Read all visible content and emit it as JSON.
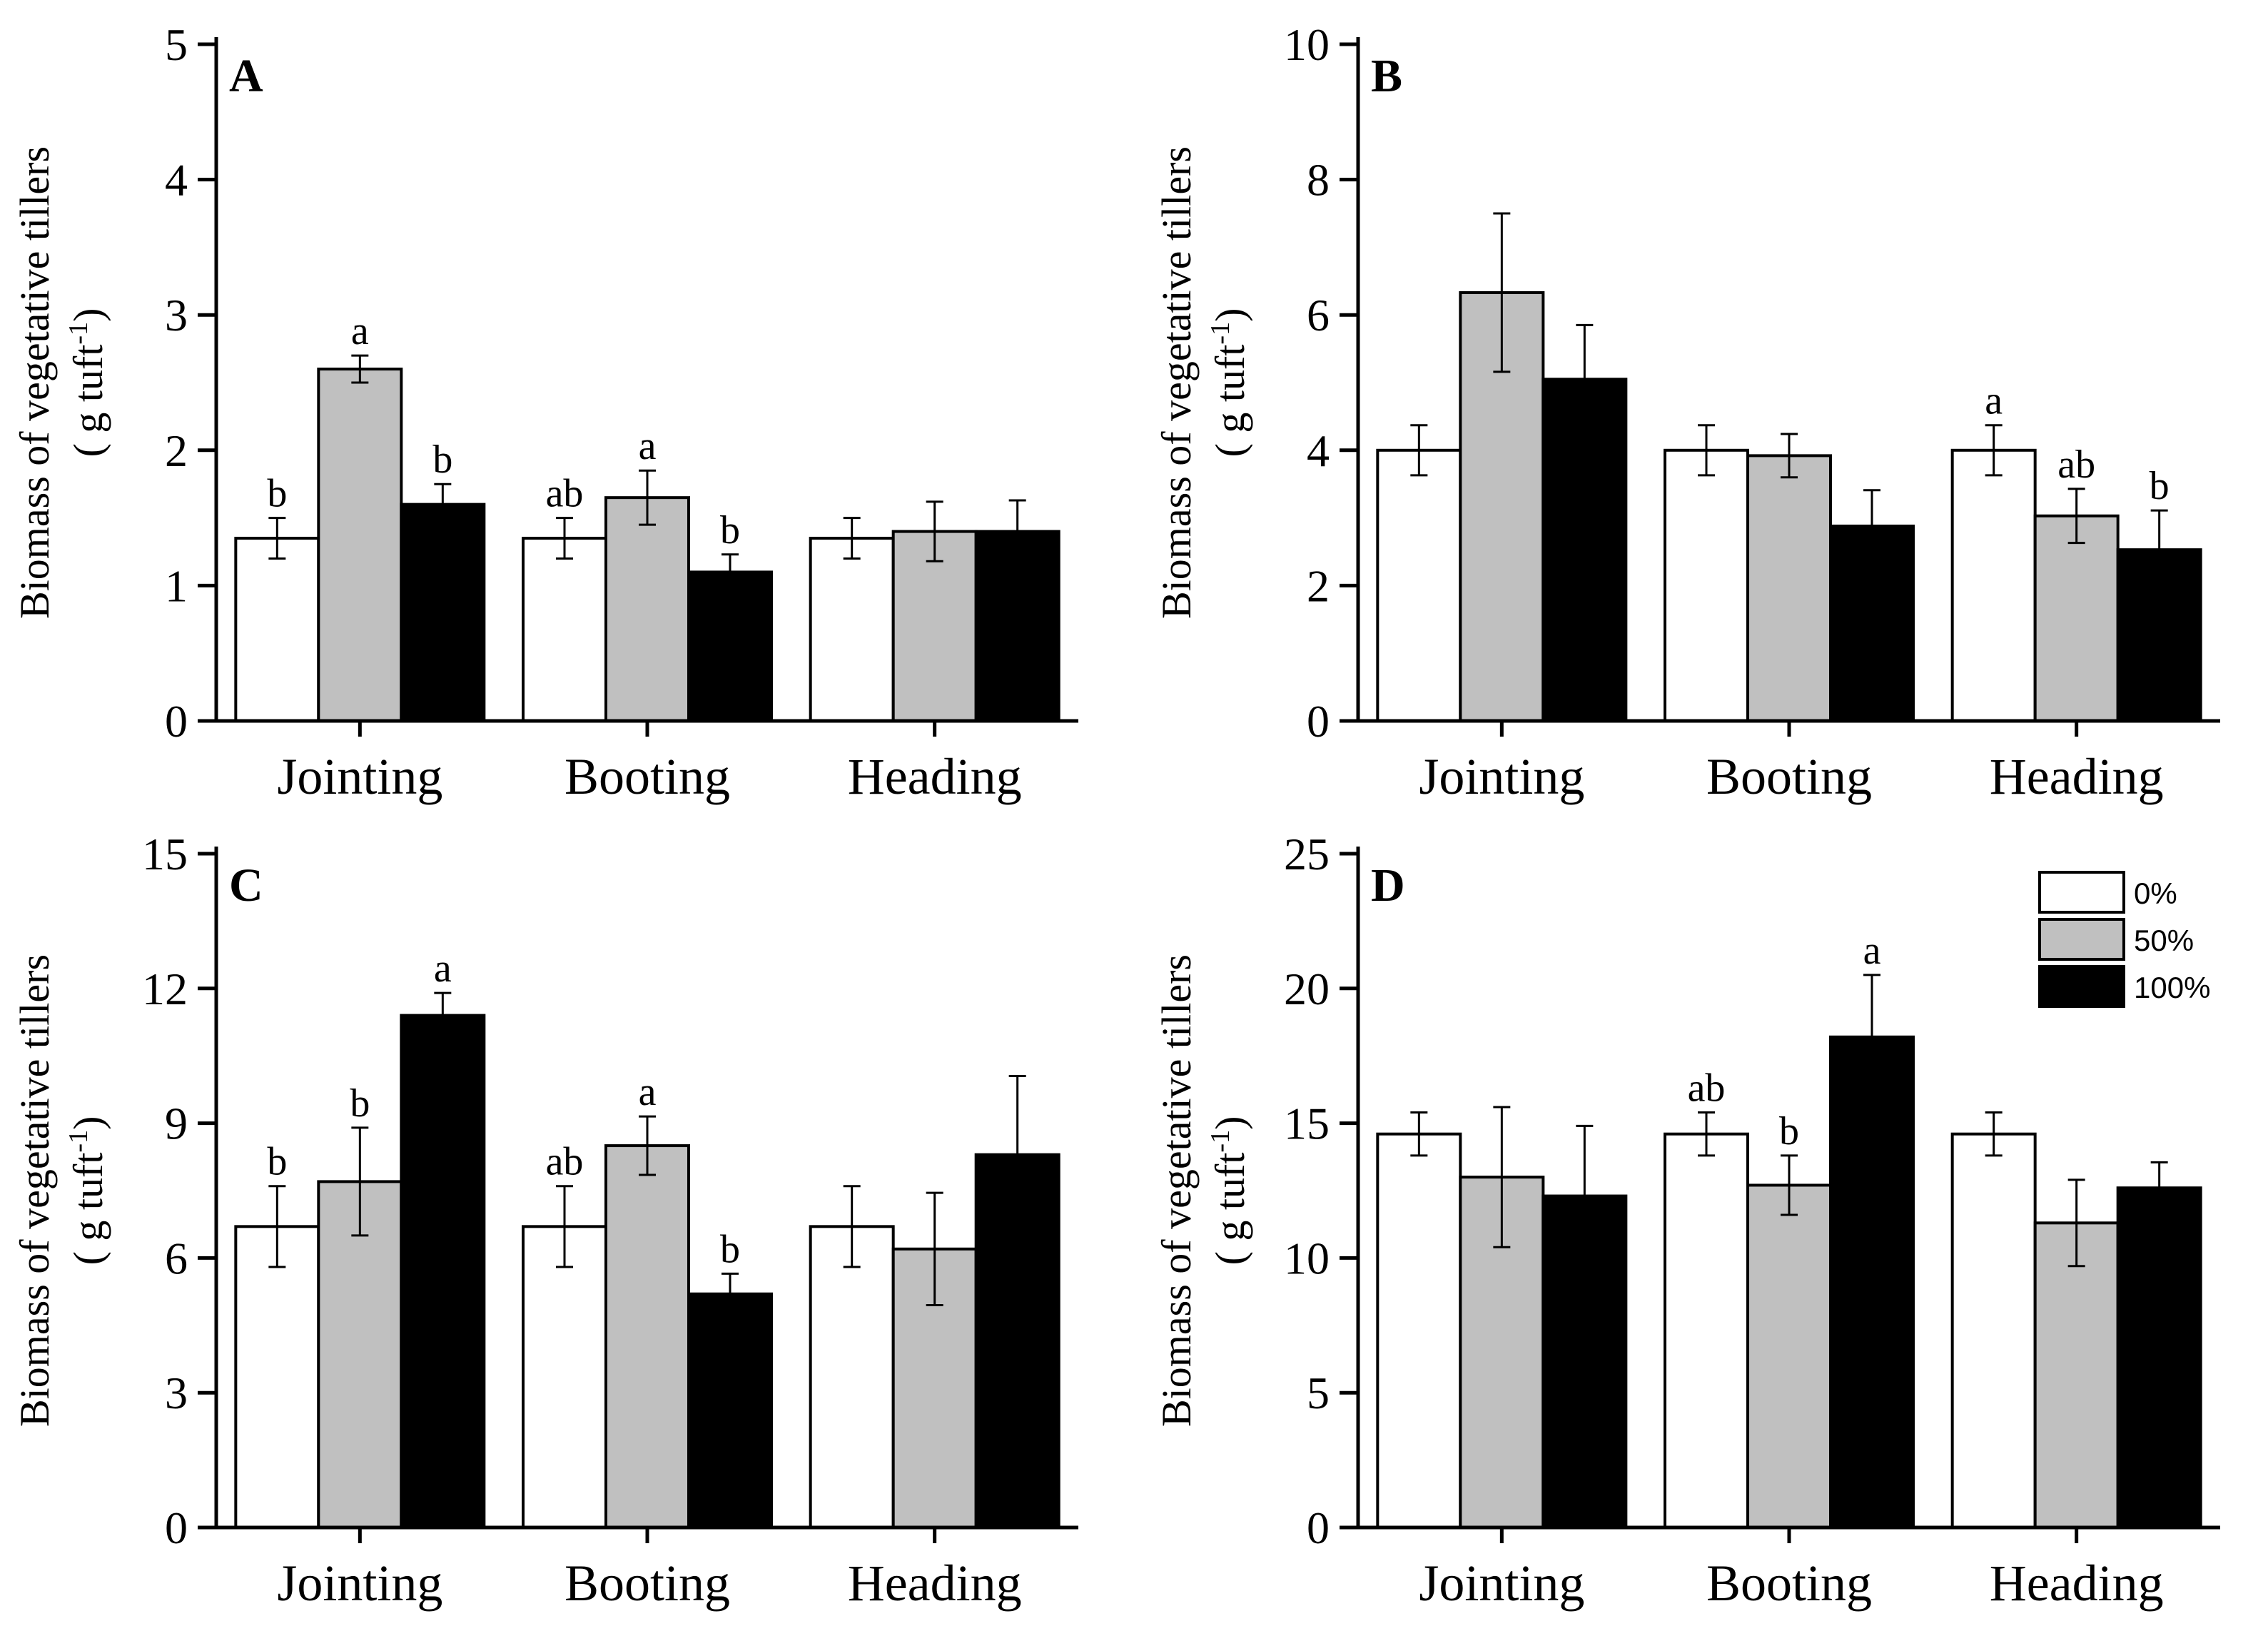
{
  "colors": {
    "0%": "#ffffff",
    "50%": "#c0c0c0",
    "100%": "#000000"
  },
  "legend": [
    "0%",
    "50%",
    "100%"
  ],
  "chart_data": [
    {
      "panel": "A",
      "type": "bar",
      "ylabel_line1": "Biomass of vegetative tillers",
      "ylabel_line2": "( g tuft",
      "ylabel_sup": "-1",
      "ylabel_close": ")",
      "ylim": [
        0,
        5
      ],
      "yticks": [
        0,
        1,
        2,
        3,
        4,
        5
      ],
      "categories": [
        "Jointing",
        "Booting",
        "Heading"
      ],
      "series": [
        {
          "name": "0%",
          "values": [
            1.35,
            1.35,
            1.35
          ],
          "errors": [
            0.15,
            0.15,
            0.15
          ],
          "sig": [
            "b",
            "ab",
            ""
          ]
        },
        {
          "name": "50%",
          "values": [
            2.6,
            1.65,
            1.4
          ],
          "errors": [
            0.1,
            0.2,
            0.22
          ],
          "sig": [
            "a",
            "a",
            ""
          ]
        },
        {
          "name": "100%",
          "values": [
            1.6,
            1.1,
            1.4
          ],
          "errors": [
            0.15,
            0.13,
            0.23
          ],
          "sig": [
            "b",
            "b",
            ""
          ]
        }
      ]
    },
    {
      "panel": "B",
      "type": "bar",
      "ylabel_line1": "Biomass of vegetative tillers",
      "ylabel_line2": "( g tuft",
      "ylabel_sup": "-1",
      "ylabel_close": ")",
      "ylim": [
        0,
        10
      ],
      "yticks": [
        0,
        2,
        4,
        6,
        8,
        10
      ],
      "categories": [
        "Jointing",
        "Booting",
        "Heading"
      ],
      "series": [
        {
          "name": "0%",
          "values": [
            4.0,
            4.0,
            4.0
          ],
          "errors": [
            0.37,
            0.37,
            0.37
          ],
          "sig": [
            "",
            "",
            "a"
          ]
        },
        {
          "name": "50%",
          "values": [
            6.33,
            3.92,
            3.03
          ],
          "errors": [
            1.17,
            0.32,
            0.4
          ],
          "sig": [
            "",
            "",
            "ab"
          ]
        },
        {
          "name": "100%",
          "values": [
            5.05,
            2.88,
            2.53
          ],
          "errors": [
            0.8,
            0.53,
            0.58
          ],
          "sig": [
            "",
            "",
            "b"
          ]
        }
      ]
    },
    {
      "panel": "C",
      "type": "bar",
      "ylabel_line1": "Biomass of vegetative tillers",
      "ylabel_line2": "( g tuft",
      "ylabel_sup": "-1",
      "ylabel_close": ")",
      "ylim": [
        0,
        15
      ],
      "yticks": [
        0,
        3,
        6,
        9,
        12,
        15
      ],
      "categories": [
        "Jointing",
        "Booting",
        "Heading"
      ],
      "series": [
        {
          "name": "0%",
          "values": [
            6.7,
            6.7,
            6.7
          ],
          "errors": [
            0.9,
            0.9,
            0.9
          ],
          "sig": [
            "b",
            "ab",
            ""
          ]
        },
        {
          "name": "50%",
          "values": [
            7.7,
            8.5,
            6.2
          ],
          "errors": [
            1.2,
            0.65,
            1.25
          ],
          "sig": [
            "b",
            "a",
            ""
          ]
        },
        {
          "name": "100%",
          "values": [
            11.4,
            5.2,
            8.3
          ],
          "errors": [
            0.5,
            0.45,
            1.75
          ],
          "sig": [
            "a",
            "b",
            ""
          ]
        }
      ]
    },
    {
      "panel": "D",
      "type": "bar",
      "ylabel_line1": "Biomass of vegetative tillers",
      "ylabel_line2": "( g tuft",
      "ylabel_sup": "-1",
      "ylabel_close": ")",
      "ylim": [
        0,
        25
      ],
      "yticks": [
        0,
        5,
        10,
        15,
        20,
        25
      ],
      "categories": [
        "Jointing",
        "Booting",
        "Heading"
      ],
      "series": [
        {
          "name": "0%",
          "values": [
            14.6,
            14.6,
            14.6
          ],
          "errors": [
            0.8,
            0.8,
            0.8
          ],
          "sig": [
            "",
            "ab",
            ""
          ]
        },
        {
          "name": "50%",
          "values": [
            13.0,
            12.7,
            11.3
          ],
          "errors": [
            2.6,
            1.1,
            1.6
          ],
          "sig": [
            "",
            "b",
            ""
          ]
        },
        {
          "name": "100%",
          "values": [
            12.3,
            18.2,
            12.6
          ],
          "errors": [
            2.6,
            2.3,
            0.95
          ],
          "sig": [
            "",
            "a",
            ""
          ]
        }
      ],
      "show_legend": true
    }
  ]
}
